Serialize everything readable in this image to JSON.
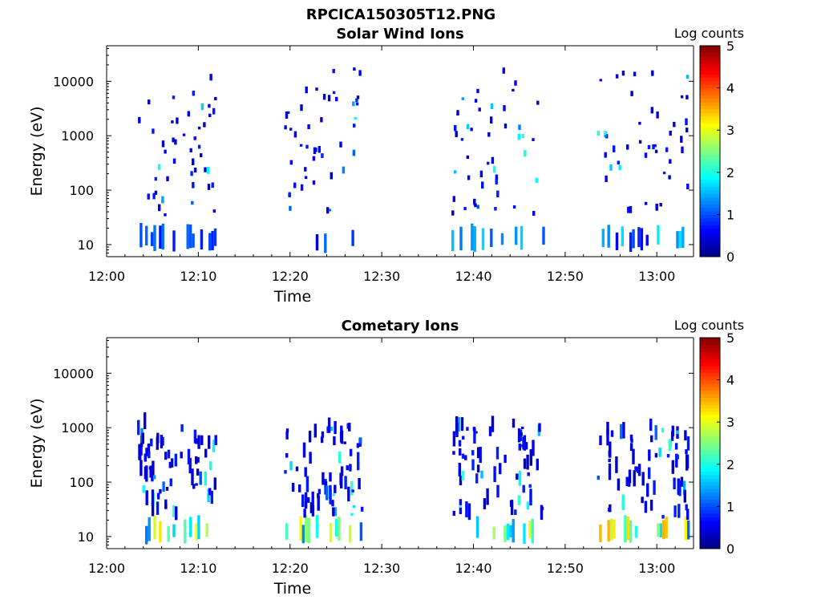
{
  "figure_title": "RPCICA150305T12.PNG",
  "chart_data": [
    {
      "type": "heatmap",
      "title": "Solar Wind Ions",
      "xlabel": "Time",
      "ylabel": "Energy (eV)",
      "x_ticks": [
        "12:00",
        "12:10",
        "12:20",
        "12:30",
        "12:40",
        "12:50",
        "13:00"
      ],
      "x_range_min": [
        0,
        64
      ],
      "y_scale": "log",
      "y_ticks": [
        "10",
        "100",
        "1000",
        "10000"
      ],
      "y_range": [
        6,
        45000
      ],
      "colorbar": {
        "label": "Log counts",
        "range": [
          0,
          5
        ],
        "ticks": [
          "0",
          "1",
          "2",
          "3",
          "4",
          "5"
        ],
        "colormap": "jet"
      },
      "bursts": [
        {
          "start_min": 3.3,
          "end_min": 11.8,
          "low_energy_level": 1.0
        },
        {
          "start_min": 19.2,
          "end_min": 27.8,
          "low_energy_level": 0.9
        },
        {
          "start_min": 37.6,
          "end_min": 47.5,
          "low_energy_level": 1.3
        },
        {
          "start_min": 53.4,
          "end_min": 63.5,
          "low_energy_level": 1.4
        }
      ]
    },
    {
      "type": "heatmap",
      "title": "Cometary Ions",
      "xlabel": "Time",
      "ylabel": "Energy (eV)",
      "x_ticks": [
        "12:00",
        "12:10",
        "12:20",
        "12:30",
        "12:40",
        "12:50",
        "13:00"
      ],
      "x_range_min": [
        0,
        64
      ],
      "y_scale": "log",
      "y_ticks": [
        "10",
        "100",
        "1000",
        "10000"
      ],
      "y_range": [
        6,
        45000
      ],
      "colorbar": {
        "label": "Log counts",
        "range": [
          0,
          5
        ],
        "ticks": [
          "0",
          "1",
          "2",
          "3",
          "4",
          "5"
        ],
        "colormap": "jet"
      },
      "bursts": [
        {
          "start_min": 3.3,
          "end_min": 11.8,
          "low_energy_level": 2.6
        },
        {
          "start_min": 19.2,
          "end_min": 27.8,
          "low_energy_level": 2.5
        },
        {
          "start_min": 37.6,
          "end_min": 47.5,
          "low_energy_level": 2.8
        },
        {
          "start_min": 53.4,
          "end_min": 63.5,
          "low_energy_level": 2.7
        }
      ]
    }
  ]
}
